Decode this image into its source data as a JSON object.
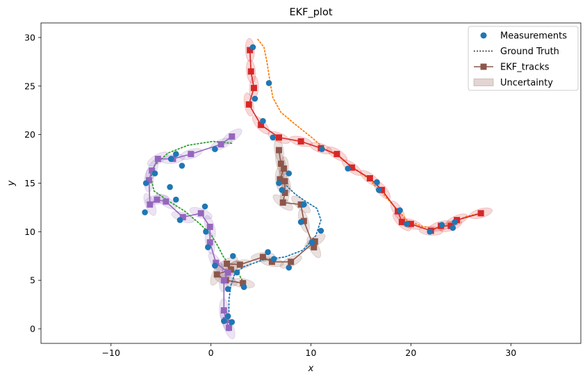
{
  "chart_data": {
    "type": "scatter",
    "title": "EKF_plot",
    "xlabel": "x",
    "ylabel": "y",
    "xlim": [
      -17,
      37
    ],
    "ylim": [
      -1.5,
      31.5
    ],
    "xticks": [
      -10,
      0,
      10,
      20,
      30
    ],
    "yticks": [
      0,
      5,
      10,
      15,
      20,
      25,
      30
    ],
    "grid": false,
    "legend": {
      "position": "top-right",
      "entries": [
        "Measurements",
        "Ground Truth",
        "EKF_tracks",
        "Uncertainty"
      ]
    },
    "measurements": [
      [
        4.2,
        29.0
      ],
      [
        5.8,
        25.3
      ],
      [
        4.4,
        23.7
      ],
      [
        5.2,
        21.4
      ],
      [
        6.2,
        19.7
      ],
      [
        7.8,
        16.0
      ],
      [
        7.1,
        14.3
      ],
      [
        6.8,
        15.0
      ],
      [
        9.3,
        12.8
      ],
      [
        9.0,
        11.0
      ],
      [
        11.0,
        10.1
      ],
      [
        10.1,
        8.9
      ],
      [
        5.7,
        7.9
      ],
      [
        6.3,
        7.2
      ],
      [
        7.8,
        6.3
      ],
      [
        11.1,
        18.5
      ],
      [
        13.7,
        16.5
      ],
      [
        16.6,
        15.1
      ],
      [
        16.8,
        14.3
      ],
      [
        18.9,
        12.2
      ],
      [
        19.6,
        10.8
      ],
      [
        21.9,
        10.0
      ],
      [
        23.1,
        10.7
      ],
      [
        24.2,
        10.4
      ],
      [
        24.4,
        11.0
      ],
      [
        0.4,
        18.5
      ],
      [
        -3.5,
        18.0
      ],
      [
        -4.0,
        17.5
      ],
      [
        -2.9,
        16.8
      ],
      [
        -5.6,
        16.0
      ],
      [
        -4.1,
        14.6
      ],
      [
        -3.5,
        13.3
      ],
      [
        -6.5,
        15.0
      ],
      [
        -6.6,
        12.0
      ],
      [
        -3.1,
        11.2
      ],
      [
        -0.6,
        12.6
      ],
      [
        -0.5,
        10.0
      ],
      [
        -0.3,
        8.4
      ],
      [
        0.4,
        6.5
      ],
      [
        2.2,
        7.5
      ],
      [
        2.6,
        5.8
      ],
      [
        3.3,
        4.3
      ],
      [
        1.7,
        4.1
      ],
      [
        1.7,
        1.3
      ],
      [
        1.3,
        0.8
      ],
      [
        2.1,
        0.7
      ]
    ],
    "series": [
      {
        "name": "Ground Truth",
        "color": "#ff7f0e",
        "points": [
          [
            4.7,
            29.8
          ],
          [
            5.3,
            29.0
          ],
          [
            5.6,
            27.5
          ],
          [
            5.9,
            25.5
          ],
          [
            6.2,
            23.8
          ],
          [
            7.0,
            22.3
          ],
          [
            8.5,
            21.0
          ],
          [
            10.2,
            19.6
          ],
          [
            11.3,
            18.6
          ],
          [
            12.8,
            17.7
          ],
          [
            14.3,
            16.6
          ],
          [
            15.8,
            15.4
          ],
          [
            17.3,
            13.8
          ],
          [
            18.7,
            12.2
          ],
          [
            19.6,
            11.2
          ],
          [
            21.0,
            10.6
          ],
          [
            22.3,
            10.3
          ],
          [
            23.3,
            10.5
          ],
          [
            24.3,
            11.0
          ],
          [
            25.6,
            11.6
          ],
          [
            27.0,
            11.9
          ]
        ]
      },
      {
        "name": "Ground Truth",
        "color": "#1f77b4",
        "points": [
          [
            1.9,
            0.4
          ],
          [
            1.8,
            1.4
          ],
          [
            1.8,
            3.0
          ],
          [
            2.0,
            4.5
          ],
          [
            2.4,
            5.7
          ],
          [
            3.3,
            6.4
          ],
          [
            5.2,
            7.1
          ],
          [
            7.4,
            7.4
          ],
          [
            9.2,
            8.1
          ],
          [
            10.5,
            9.6
          ],
          [
            11.0,
            11.2
          ],
          [
            10.6,
            12.4
          ],
          [
            9.5,
            13.1
          ],
          [
            8.4,
            13.9
          ],
          [
            7.5,
            14.8
          ]
        ]
      },
      {
        "name": "Ground Truth",
        "color": "#2ca02c",
        "points": [
          [
            3.3,
            4.7
          ],
          [
            2.8,
            5.6
          ],
          [
            2.1,
            6.2
          ],
          [
            1.2,
            7.5
          ],
          [
            0.6,
            8.7
          ],
          [
            0.0,
            9.7
          ],
          [
            -1.1,
            10.8
          ],
          [
            -2.6,
            12.1
          ],
          [
            -4.3,
            13.2
          ],
          [
            -5.7,
            14.2
          ],
          [
            -6.0,
            15.6
          ],
          [
            -5.6,
            16.9
          ],
          [
            -4.3,
            18.1
          ],
          [
            -2.3,
            18.9
          ],
          [
            0.2,
            19.3
          ],
          [
            2.1,
            19.1
          ]
        ]
      },
      {
        "name": "EKF_tracks",
        "color": "#d62728",
        "points": [
          [
            3.9,
            28.7
          ],
          [
            4.0,
            26.5
          ],
          [
            4.3,
            24.8
          ],
          [
            3.8,
            23.1
          ],
          [
            5.0,
            21.0
          ],
          [
            6.8,
            19.7
          ],
          [
            9.0,
            19.3
          ],
          [
            11.0,
            18.6
          ],
          [
            12.6,
            18.0
          ],
          [
            14.1,
            16.6
          ],
          [
            15.9,
            15.5
          ],
          [
            17.1,
            14.3
          ],
          [
            18.7,
            12.1
          ],
          [
            19.1,
            11.0
          ],
          [
            20.0,
            10.8
          ],
          [
            22.0,
            10.1
          ],
          [
            23.0,
            10.6
          ],
          [
            24.0,
            10.6
          ],
          [
            24.6,
            11.2
          ],
          [
            27.0,
            11.9
          ]
        ]
      },
      {
        "name": "EKF_tracks",
        "color": "#8c564b",
        "points": [
          [
            6.8,
            18.4
          ],
          [
            7.0,
            17.0
          ],
          [
            7.3,
            16.5
          ],
          [
            6.9,
            15.4
          ],
          [
            7.4,
            15.2
          ],
          [
            7.4,
            14.0
          ],
          [
            7.2,
            13.0
          ],
          [
            9.0,
            12.8
          ],
          [
            9.3,
            11.1
          ],
          [
            10.3,
            8.4
          ],
          [
            10.4,
            9.0
          ],
          [
            8.0,
            6.9
          ],
          [
            6.1,
            6.9
          ],
          [
            5.2,
            7.4
          ],
          [
            2.9,
            6.6
          ],
          [
            1.6,
            6.7
          ],
          [
            2.0,
            6.1
          ],
          [
            0.6,
            5.6
          ],
          [
            1.5,
            5.0
          ],
          [
            3.2,
            4.7
          ]
        ]
      },
      {
        "name": "EKF_tracks",
        "color": "#9467bd",
        "points": [
          [
            1.8,
            0.1
          ],
          [
            1.5,
            0.9
          ],
          [
            1.3,
            1.9
          ],
          [
            1.3,
            5.0
          ],
          [
            1.7,
            5.8
          ],
          [
            0.5,
            6.8
          ],
          [
            -0.1,
            8.9
          ],
          [
            -0.1,
            10.5
          ],
          [
            -1.0,
            11.9
          ],
          [
            -2.8,
            11.5
          ],
          [
            -4.5,
            13.1
          ],
          [
            -5.4,
            13.3
          ],
          [
            -6.1,
            12.8
          ],
          [
            -6.2,
            15.3
          ],
          [
            -5.9,
            16.3
          ],
          [
            -5.3,
            17.5
          ],
          [
            -3.8,
            17.5
          ],
          [
            -2.0,
            18.0
          ],
          [
            1.0,
            19.0
          ],
          [
            2.1,
            19.8
          ]
        ]
      }
    ]
  }
}
